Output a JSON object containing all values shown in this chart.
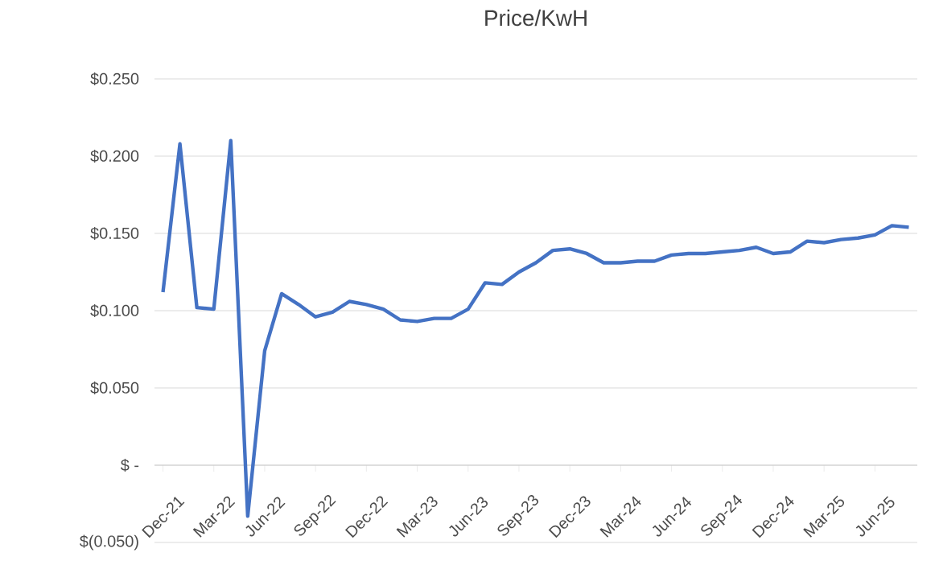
{
  "chart_data": {
    "type": "line",
    "title": "Price/KwH",
    "categories": [
      "Dec-21",
      null,
      null,
      "Mar-22",
      null,
      null,
      "Jun-22",
      null,
      null,
      "Sep-22",
      null,
      null,
      "Dec-22",
      null,
      null,
      "Mar-23",
      null,
      null,
      "Jun-23",
      null,
      null,
      "Sep-23",
      null,
      null,
      "Dec-23",
      null,
      null,
      "Mar-24",
      null,
      null,
      "Jun-24",
      null,
      null,
      "Sep-24",
      null,
      null,
      "Dec-24",
      null,
      null,
      "Mar-25",
      null,
      null,
      "Jun-25",
      null,
      null
    ],
    "series": [
      {
        "color": "#4472c4",
        "values": [
          0.112,
          0.208,
          0.102,
          0.101,
          0.21,
          -0.033,
          0.074,
          0.111,
          0.104,
          0.096,
          0.099,
          0.106,
          0.104,
          0.101,
          0.094,
          0.093,
          0.095,
          0.095,
          0.101,
          0.118,
          0.117,
          0.125,
          0.131,
          0.139,
          0.14,
          0.137,
          0.131,
          0.131,
          0.132,
          0.132,
          0.136,
          0.137,
          0.137,
          0.138,
          0.139,
          0.141,
          0.137,
          0.138,
          0.145,
          0.144,
          0.146,
          0.147,
          0.149,
          0.155,
          0.154
        ]
      }
    ],
    "ylim": [
      -0.05,
      0.25
    ],
    "yticks": [
      {
        "value": -0.05,
        "label": "$(0.050)"
      },
      {
        "value": 0,
        "label": "$ -"
      },
      {
        "value": 0.05,
        "label": "$0.050"
      },
      {
        "value": 0.1,
        "label": "$0.100"
      },
      {
        "value": 0.15,
        "label": "$0.150"
      },
      {
        "value": 0.2,
        "label": "$0.200"
      },
      {
        "value": 0.25,
        "label": "$0.250"
      }
    ],
    "grid": "y",
    "marker": "none",
    "line_style": "solid"
  }
}
